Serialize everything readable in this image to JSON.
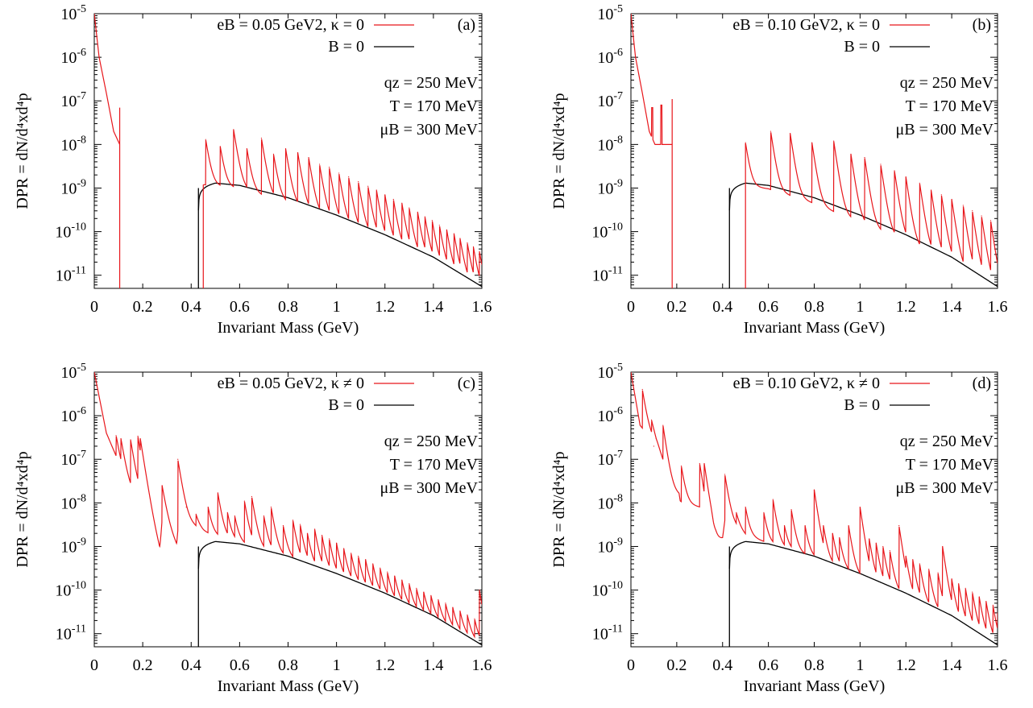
{
  "colors": {
    "magnetic": "#e8161b",
    "zero_field": "#000000",
    "axis": "#000000"
  },
  "chart_data": [
    {
      "type": "line",
      "panel_label": "(a)",
      "xlabel": "Invariant Mass (GeV)",
      "ylabel": "DPR = dN/d⁴xd⁴p",
      "xlim": [
        0,
        1.6
      ],
      "ylim": [
        5e-12,
        1e-05
      ],
      "yscale": "log",
      "x_ticks": [
        "0",
        "0.2",
        "0.4",
        "0.6",
        "0.8",
        "1",
        "1.2",
        "1.4",
        "1.6"
      ],
      "y_ticks": [
        "10-11",
        "10-10",
        "10-9",
        "10-8",
        "10-7",
        "10-6",
        "10-5"
      ],
      "legend": {
        "position": "top-right",
        "entries": [
          "eB = 0.05 GeV2, κ = 0",
          "B = 0"
        ]
      },
      "annotations": [
        "qz = 250 MeV",
        "T = 170 MeV",
        "μB = 300 MeV"
      ],
      "series": [
        {
          "name": "eB = 0.05 GeV2, κ = 0",
          "color": "#e8161b",
          "threshold": 0.45,
          "low_peaks": [
            [
              0.105,
              7e-08
            ]
          ],
          "peaks": [
            [
              0.46,
              1.3e-08
            ],
            [
              0.52,
              9e-09
            ],
            [
              0.575,
              2.2e-08
            ],
            [
              0.63,
              8e-09
            ],
            [
              0.69,
              1.4e-08
            ],
            [
              0.74,
              6e-09
            ],
            [
              0.79,
              8e-09
            ],
            [
              0.84,
              6.5e-09
            ],
            [
              0.885,
              5e-09
            ],
            [
              0.93,
              3.5e-09
            ],
            [
              0.97,
              3e-09
            ],
            [
              1.01,
              2.2e-09
            ],
            [
              1.05,
              1.8e-09
            ],
            [
              1.09,
              1.4e-09
            ],
            [
              1.13,
              1.1e-09
            ],
            [
              1.165,
              9e-10
            ],
            [
              1.2,
              7e-10
            ],
            [
              1.235,
              5.5e-10
            ],
            [
              1.27,
              4.5e-10
            ],
            [
              1.3,
              3.5e-10
            ],
            [
              1.335,
              2.8e-10
            ],
            [
              1.365,
              2.2e-10
            ],
            [
              1.395,
              1.8e-10
            ],
            [
              1.425,
              1.4e-10
            ],
            [
              1.455,
              1.1e-10
            ],
            [
              1.485,
              9e-11
            ],
            [
              1.51,
              7e-11
            ],
            [
              1.54,
              5.5e-11
            ],
            [
              1.565,
              4.5e-11
            ],
            [
              1.59,
              3.5e-11
            ]
          ]
        },
        {
          "name": "B = 0",
          "color": "#000000",
          "threshold": 0.43
        }
      ]
    },
    {
      "type": "line",
      "panel_label": "(b)",
      "xlabel": "Invariant Mass (GeV)",
      "ylabel": "DPR = dN/d⁴xd⁴p",
      "xlim": [
        0,
        1.6
      ],
      "ylim": [
        5e-12,
        1e-05
      ],
      "yscale": "log",
      "x_ticks": [
        "0",
        "0.2",
        "0.4",
        "0.6",
        "0.8",
        "1",
        "1.2",
        "1.4",
        "1.6"
      ],
      "y_ticks": [
        "10-11",
        "10-10",
        "10-9",
        "10-8",
        "10-7",
        "10-6",
        "10-5"
      ],
      "legend": {
        "position": "top-right",
        "entries": [
          "eB = 0.10 GeV2, κ = 0",
          "B = 0"
        ]
      },
      "annotations": [
        "qz = 250 MeV",
        "T = 170 MeV",
        "μB = 300 MeV"
      ],
      "series": [
        {
          "name": "eB = 0.10 GeV2, κ = 0",
          "color": "#e8161b",
          "threshold": 0.5,
          "low_peaks": [
            [
              0.09,
              7e-08
            ],
            [
              0.13,
              8e-08
            ],
            [
              0.18,
              1.1e-07
            ]
          ],
          "peaks": [
            [
              0.5,
              1.1e-08
            ],
            [
              0.61,
              2e-08
            ],
            [
              0.695,
              1.8e-08
            ],
            [
              0.79,
              1.1e-08
            ],
            [
              0.885,
              1.2e-08
            ],
            [
              0.96,
              6e-09
            ],
            [
              1.02,
              5e-09
            ],
            [
              1.09,
              3.5e-09
            ],
            [
              1.15,
              2.5e-09
            ],
            [
              1.2,
              1.8e-09
            ],
            [
              1.26,
              1.3e-09
            ],
            [
              1.31,
              9e-10
            ],
            [
              1.355,
              7e-10
            ],
            [
              1.4,
              5.5e-10
            ],
            [
              1.45,
              4e-10
            ],
            [
              1.49,
              3e-10
            ],
            [
              1.53,
              2.3e-10
            ],
            [
              1.57,
              1.8e-10
            ]
          ]
        },
        {
          "name": "B = 0",
          "color": "#000000",
          "threshold": 0.43
        }
      ]
    },
    {
      "type": "line",
      "panel_label": "(c)",
      "xlabel": "Invariant Mass (GeV)",
      "ylabel": "DPR = dN/d⁴xd⁴p",
      "xlim": [
        0,
        1.6
      ],
      "ylim": [
        5e-12,
        1e-05
      ],
      "yscale": "log",
      "x_ticks": [
        "0",
        "0.2",
        "0.4",
        "0.6",
        "0.8",
        "1",
        "1.2",
        "1.4",
        "1.6"
      ],
      "y_ticks": [
        "10-11",
        "10-10",
        "10-9",
        "10-8",
        "10-7",
        "10-6",
        "10-5"
      ],
      "legend": {
        "position": "top-right",
        "entries": [
          "eB = 0.05 GeV2, κ ≠ 0",
          "B = 0"
        ]
      },
      "annotations": [
        "qz = 250 MeV",
        "T = 170 MeV",
        "μB = 300 MeV"
      ],
      "series": [
        {
          "name": "eB = 0.05 GeV2, κ ≠ 0",
          "color": "#e8161b",
          "low_curve": [
            [
              0.0,
              1e-05
            ],
            [
              0.05,
              4e-07
            ],
            [
              0.09,
              1.2e-07
            ],
            [
              0.1,
              5e-08
            ],
            [
              0.13,
              2.5e-08
            ],
            [
              0.15,
              1.8e-08
            ],
            [
              0.18,
              1.3e-08
            ],
            [
              0.19,
              8e-09
            ],
            [
              0.23,
              2.5e-09
            ],
            [
              0.27,
              6e-10
            ],
            [
              0.28,
              4e-09
            ],
            [
              0.34,
              1e-09
            ],
            [
              0.35,
              5e-09
            ],
            [
              0.45,
              2.2e-09
            ],
            [
              0.52,
              1.6e-09
            ],
            [
              0.6,
              1.2e-09
            ],
            [
              0.8,
              5.5e-10
            ],
            [
              1.0,
              2e-10
            ],
            [
              1.2,
              7e-11
            ],
            [
              1.4,
              2.2e-11
            ],
            [
              1.6,
              5.5e-12
            ]
          ],
          "peaks": [
            [
              0.09,
              3.5e-07
            ],
            [
              0.11,
              3e-07
            ],
            [
              0.15,
              2.8e-07
            ],
            [
              0.18,
              3.4e-07
            ],
            [
              0.19,
              3e-07
            ],
            [
              0.28,
              2.5e-08
            ],
            [
              0.345,
              1e-07
            ],
            [
              0.38,
              8e-09
            ],
            [
              0.42,
              5.5e-09
            ],
            [
              0.47,
              8e-09
            ],
            [
              0.51,
              1.7e-08
            ],
            [
              0.55,
              6e-09
            ],
            [
              0.58,
              5e-09
            ],
            [
              0.62,
              1.1e-08
            ],
            [
              0.65,
              1.4e-08
            ],
            [
              0.7,
              5e-09
            ],
            [
              0.73,
              8e-09
            ],
            [
              0.78,
              3e-09
            ],
            [
              0.82,
              4e-09
            ],
            [
              0.85,
              3.2e-09
            ],
            [
              0.88,
              2e-09
            ],
            [
              0.91,
              2.5e-09
            ],
            [
              0.94,
              1.8e-09
            ],
            [
              0.97,
              1.5e-09
            ],
            [
              1.0,
              1.2e-09
            ],
            [
              1.03,
              9e-10
            ],
            [
              1.06,
              7e-10
            ],
            [
              1.09,
              6e-10
            ],
            [
              1.12,
              5e-10
            ],
            [
              1.15,
              4e-10
            ],
            [
              1.18,
              3.2e-10
            ],
            [
              1.21,
              2.6e-10
            ],
            [
              1.24,
              2.1e-10
            ],
            [
              1.27,
              1.7e-10
            ],
            [
              1.3,
              1.4e-10
            ],
            [
              1.33,
              1.1e-10
            ],
            [
              1.36,
              9e-11
            ],
            [
              1.39,
              7.5e-11
            ],
            [
              1.42,
              6e-11
            ],
            [
              1.45,
              5e-11
            ],
            [
              1.48,
              4e-11
            ],
            [
              1.51,
              3.3e-11
            ],
            [
              1.54,
              2.7e-11
            ],
            [
              1.57,
              2.2e-11
            ],
            [
              1.59,
              1e-10
            ]
          ]
        },
        {
          "name": "B = 0",
          "color": "#000000",
          "threshold": 0.43
        }
      ]
    },
    {
      "type": "line",
      "panel_label": "(d)",
      "xlabel": "Invariant Mass (GeV)",
      "ylabel": "DPR = dN/d⁴xd⁴p",
      "xlim": [
        0,
        1.6
      ],
      "ylim": [
        5e-12,
        1e-05
      ],
      "yscale": "log",
      "x_ticks": [
        "0",
        "0.2",
        "0.4",
        "0.6",
        "0.8",
        "1",
        "1.2",
        "1.4",
        "1.6"
      ],
      "y_ticks": [
        "10-11",
        "10-10",
        "10-9",
        "10-8",
        "10-7",
        "10-6",
        "10-5"
      ],
      "legend": {
        "position": "top-right",
        "entries": [
          "eB = 0.10 GeV2, κ ≠ 0",
          "B = 0"
        ]
      },
      "annotations": [
        "qz = 250 MeV",
        "T = 170 MeV",
        "μB = 300 MeV"
      ],
      "series": [
        {
          "name": "eB = 0.10 GeV2, κ ≠ 0",
          "color": "#e8161b",
          "low_curve": [
            [
              0.0,
              1e-05
            ],
            [
              0.04,
              6e-07
            ],
            [
              0.1,
              2.5e-07
            ],
            [
              0.14,
              8e-08
            ],
            [
              0.145,
              2e-08
            ],
            [
              0.21,
              1.5e-08
            ],
            [
              0.215,
              1e-08
            ],
            [
              0.3,
              8e-09
            ],
            [
              0.31,
              6e-09
            ],
            [
              0.32,
              2.5e-09
            ],
            [
              0.35,
              1.5e-09
            ],
            [
              0.36,
              8e-10
            ],
            [
              0.37,
              1.2e-09
            ],
            [
              0.4,
              1.5e-09
            ],
            [
              0.41,
              4e-09
            ],
            [
              0.47,
              2.5e-09
            ],
            [
              0.5,
              1.8e-09
            ],
            [
              0.6,
              1.2e-09
            ],
            [
              0.8,
              5.5e-10
            ],
            [
              1.0,
              2e-10
            ],
            [
              1.2,
              7e-11
            ],
            [
              1.4,
              2.2e-11
            ],
            [
              1.6,
              5.5e-12
            ]
          ],
          "peaks": [
            [
              0.05,
              4e-06
            ],
            [
              0.09,
              8e-07
            ],
            [
              0.1,
              2e-07
            ],
            [
              0.11,
              3e-07
            ],
            [
              0.14,
              6e-07
            ],
            [
              0.22,
              7e-08
            ],
            [
              0.3,
              8e-08
            ],
            [
              0.32,
              8e-08
            ],
            [
              0.41,
              4.5e-08
            ],
            [
              0.46,
              6e-09
            ],
            [
              0.5,
              8e-09
            ],
            [
              0.58,
              6e-09
            ],
            [
              0.62,
              1.2e-08
            ],
            [
              0.67,
              3e-09
            ],
            [
              0.7,
              7e-09
            ],
            [
              0.76,
              3e-09
            ],
            [
              0.8,
              2e-08
            ],
            [
              0.84,
              3e-09
            ],
            [
              0.88,
              2e-09
            ],
            [
              0.91,
              1.6e-09
            ],
            [
              0.95,
              3e-09
            ],
            [
              1.0,
              8e-09
            ],
            [
              1.04,
              1.5e-09
            ],
            [
              1.07,
              1.2e-09
            ],
            [
              1.1,
              1e-09
            ],
            [
              1.13,
              8e-10
            ],
            [
              1.17,
              3e-09
            ],
            [
              1.2,
              6e-10
            ],
            [
              1.23,
              5e-10
            ],
            [
              1.26,
              4e-10
            ],
            [
              1.3,
              3e-10
            ],
            [
              1.34,
              2.5e-10
            ],
            [
              1.36,
              1e-09
            ],
            [
              1.4,
              1.8e-10
            ],
            [
              1.43,
              1.4e-10
            ],
            [
              1.46,
              1.1e-10
            ],
            [
              1.49,
              9e-11
            ],
            [
              1.52,
              7e-11
            ],
            [
              1.55,
              5.5e-11
            ],
            [
              1.58,
              4.5e-11
            ],
            [
              1.6,
              3e-11
            ]
          ]
        },
        {
          "name": "B = 0",
          "color": "#000000",
          "threshold": 0.43
        }
      ]
    }
  ]
}
